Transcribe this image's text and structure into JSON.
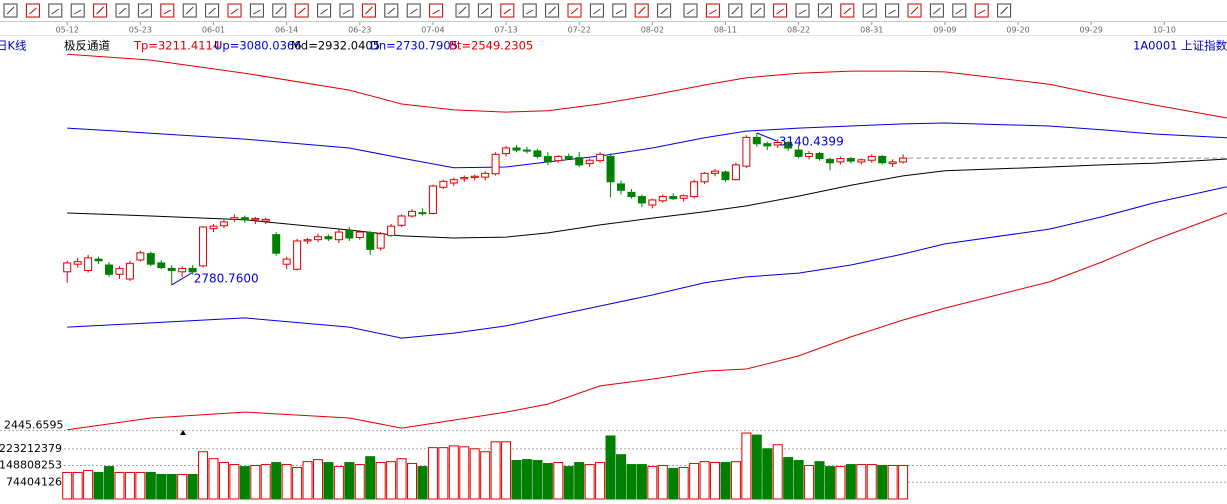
{
  "chart_data": {
    "type": "candlestick",
    "period": "日K线",
    "indicator": "极反通道",
    "symbol": "1A0001 上证指数",
    "up_color": "#e00000",
    "down_color": "#008000",
    "xlim": [
      -0.5,
      111
    ],
    "xticks": [
      {
        "value": 0,
        "label": "05-12"
      },
      {
        "value": 7,
        "label": "05-23"
      },
      {
        "value": 14,
        "label": "06-01"
      },
      {
        "value": 21,
        "label": "06-14"
      },
      {
        "value": 28,
        "label": "06-23"
      },
      {
        "value": 35,
        "label": "07-04"
      },
      {
        "value": 42,
        "label": "07-13"
      },
      {
        "value": 49,
        "label": "07-22"
      },
      {
        "value": 56,
        "label": "08-02"
      },
      {
        "value": 63,
        "label": "08-11"
      },
      {
        "value": 70,
        "label": "08-22"
      },
      {
        "value": 77,
        "label": "08-31"
      },
      {
        "value": 84,
        "label": "09-09"
      },
      {
        "value": 91,
        "label": "09-20"
      },
      {
        "value": 98,
        "label": "09-29"
      },
      {
        "value": 105,
        "label": "10-10"
      }
    ],
    "ylim": [
      2445.6595,
      3360.5
    ],
    "yticks": [
      2445.6595
    ],
    "open": [
      2812,
      2830,
      2815,
      2842,
      2828,
      2806,
      2795,
      2840,
      2855,
      2833,
      2820,
      2812,
      2820,
      2826,
      2914,
      2921,
      2936,
      2940,
      2935,
      2932,
      2900,
      2830,
      2818,
      2885,
      2888,
      2895,
      2888,
      2910,
      2893,
      2905,
      2868,
      2898,
      2922,
      2944,
      2952,
      2950,
      3012,
      3022,
      3032,
      3035,
      3036,
      3044,
      3092,
      3105,
      3100,
      3098,
      3085,
      3075,
      3085,
      3082,
      3068,
      3075,
      3085,
      3020,
      3000,
      2990,
      2970,
      2980,
      2990,
      2986,
      2990,
      3025,
      3045,
      3048,
      3030,
      3062,
      3130,
      3115,
      3112,
      3118,
      3100,
      3085,
      3092,
      3078,
      3072,
      3080,
      3072,
      3076,
      3085,
      3068,
      3072
    ],
    "high": [
      2838,
      2845,
      2852,
      2848,
      2835,
      2825,
      2838,
      2862,
      2860,
      2840,
      2828,
      2825,
      2828,
      2920,
      2925,
      2935,
      2948,
      2945,
      2942,
      2940,
      2906,
      2848,
      2890,
      2892,
      2902,
      2900,
      2912,
      2918,
      2910,
      2908,
      2906,
      2925,
      2948,
      2960,
      2962,
      3018,
      3030,
      3035,
      3040,
      3042,
      3050,
      3095,
      3110,
      3112,
      3108,
      3103,
      3095,
      3088,
      3092,
      3095,
      3080,
      3095,
      3092,
      3028,
      3008,
      2995,
      2985,
      2995,
      2998,
      2995,
      3030,
      3048,
      3055,
      3052,
      3070,
      3135,
      3140.4399,
      3120,
      3125,
      3122,
      3112,
      3098,
      3096,
      3082,
      3085,
      3084,
      3080,
      3090,
      3088,
      3078,
      3090
    ],
    "low": [
      2786,
      2822,
      2810,
      2830,
      2800,
      2795,
      2790,
      2836,
      2826,
      2818,
      2780.76,
      2800,
      2805,
      2822,
      2906,
      2915,
      2930,
      2928,
      2925,
      2925,
      2850,
      2818,
      2815,
      2878,
      2882,
      2885,
      2880,
      2885,
      2888,
      2852,
      2862,
      2895,
      2918,
      2940,
      2945,
      2948,
      3008,
      3015,
      3025,
      3028,
      3028,
      3040,
      3085,
      3095,
      3092,
      3080,
      3065,
      3070,
      3078,
      3060,
      3060,
      3070,
      2988,
      2995,
      2985,
      2965,
      2962,
      2975,
      2982,
      2978,
      2985,
      3020,
      3038,
      3025,
      3028,
      3058,
      3108,
      3100,
      3105,
      3098,
      3080,
      3078,
      3075,
      3052,
      3066,
      3068,
      3066,
      3070,
      3066,
      3060,
      3068
    ],
    "close": [
      2833,
      2836,
      2845,
      2838,
      2806,
      2820,
      2832,
      2857,
      2830,
      2822,
      2815,
      2820,
      2812,
      2918,
      2920,
      2930,
      2940,
      2935,
      2938,
      2936,
      2856,
      2842,
      2885,
      2888,
      2895,
      2890,
      2906,
      2892,
      2906,
      2865,
      2902,
      2920,
      2944,
      2955,
      2950,
      3015,
      3026,
      3030,
      3035,
      3038,
      3045,
      3090,
      3105,
      3100,
      3098,
      3085,
      3072,
      3085,
      3080,
      3065,
      3076,
      3090,
      3025,
      3005,
      2990,
      2975,
      2982,
      2990,
      2985,
      2992,
      3025,
      3045,
      3050,
      3030,
      3065,
      3130,
      3115,
      3110,
      3118,
      3105,
      3085,
      3092,
      3080,
      3070,
      3080,
      3074,
      3077,
      3085,
      3070,
      3072,
      3081
    ],
    "max_label": "3140.4399",
    "min_label": "2780.7600",
    "bands": {
      "x": [
        0,
        8,
        17,
        27,
        32,
        37,
        42,
        46,
        51,
        56,
        61,
        65,
        70,
        75,
        80,
        84,
        94,
        99,
        104,
        111
      ],
      "series": [
        {
          "name": "Tp=3211.4114",
          "color": "#e00000",
          "values": [
            3327,
            3313,
            3282,
            3242,
            3209,
            3195,
            3190,
            3193,
            3209,
            3230,
            3254,
            3271,
            3282,
            3287,
            3287,
            3285,
            3256,
            3230,
            3207,
            3176
          ]
        },
        {
          "name": "Up=3080.0366",
          "color": "#0000e0",
          "values": [
            3152,
            3140,
            3126,
            3105,
            3081,
            3058,
            3060,
            3072,
            3086,
            3105,
            3129,
            3145,
            3152,
            3157,
            3162,
            3164,
            3157,
            3148,
            3138,
            3129
          ]
        },
        {
          "name": "Md=2932.0405",
          "color": "#000000",
          "values": [
            2951,
            2944,
            2935,
            2911,
            2897,
            2892,
            2894,
            2904,
            2923,
            2939,
            2954,
            2968,
            2991,
            3017,
            3039,
            3051,
            3060,
            3065,
            3069,
            3079
          ]
        },
        {
          "name": "Dn=2730.7905",
          "color": "#0000e0",
          "values": [
            2681,
            2691,
            2703,
            2681,
            2655,
            2667,
            2684,
            2705,
            2731,
            2757,
            2786,
            2800,
            2809,
            2828,
            2854,
            2878,
            2913,
            2942,
            2975,
            3013
          ]
        },
        {
          "name": "Bt=2549.2305",
          "color": "#e00000",
          "values": [
            2438,
            2466,
            2480,
            2466,
            2442,
            2461,
            2480,
            2499,
            2542,
            2558,
            2577,
            2582,
            2613,
            2658,
            2698,
            2726,
            2788,
            2835,
            2887,
            2951
          ]
        }
      ]
    },
    "volume": {
      "ylim": [
        0,
        297616504
      ],
      "yticks": [
        74404126,
        148808253,
        223212379
      ],
      "values": [
        118000000,
        118000000,
        127000000,
        118000000,
        144000000,
        118000000,
        118000000,
        118000000,
        118000000,
        109000000,
        109000000,
        109000000,
        109000000,
        210000000,
        179000000,
        162000000,
        153000000,
        144000000,
        149000000,
        153000000,
        162000000,
        153000000,
        140000000,
        166000000,
        175000000,
        162000000,
        144000000,
        162000000,
        153000000,
        188000000,
        162000000,
        166000000,
        179000000,
        158000000,
        144000000,
        228000000,
        228000000,
        236000000,
        232000000,
        223000000,
        210000000,
        254000000,
        254000000,
        171000000,
        175000000,
        171000000,
        158000000,
        162000000,
        144000000,
        162000000,
        153000000,
        162000000,
        280000000,
        197000000,
        153000000,
        153000000,
        144000000,
        149000000,
        136000000,
        140000000,
        158000000,
        166000000,
        162000000,
        162000000,
        166000000,
        293000000,
        284000000,
        223000000,
        241000000,
        184000000,
        171000000,
        149000000,
        166000000,
        144000000,
        144000000,
        153000000,
        153000000,
        153000000,
        149000000,
        149000000,
        149000000
      ]
    }
  }
}
